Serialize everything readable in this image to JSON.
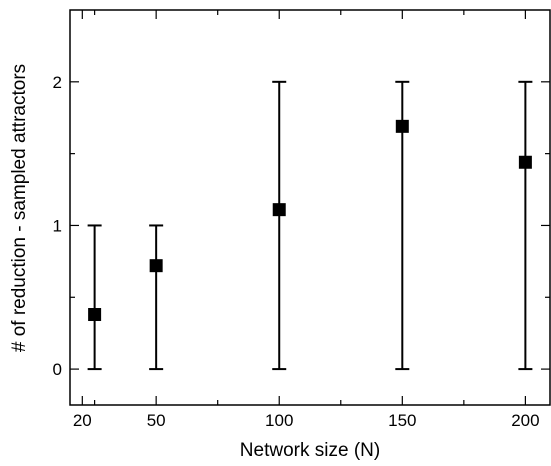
{
  "chart_data": {
    "type": "scatter",
    "title": "",
    "xlabel": "Network size (N)",
    "ylabel": "# of reduction - sampled attractors",
    "xlim": [
      15,
      210
    ],
    "ylim": [
      -0.25,
      2.5
    ],
    "xticks_major": [
      20,
      50,
      100,
      150,
      200
    ],
    "xticks_minor": [
      25,
      75,
      125,
      175
    ],
    "yticks_major": [
      0,
      1,
      2
    ],
    "yticks_minor": [
      0.5,
      1.5
    ],
    "grid": false,
    "legend": "none",
    "marker": "square",
    "color": "#000000",
    "points": [
      {
        "x": 25,
        "y": 0.38,
        "err_low": 0,
        "err_high": 1
      },
      {
        "x": 50,
        "y": 0.72,
        "err_low": 0,
        "err_high": 1
      },
      {
        "x": 100,
        "y": 1.11,
        "err_low": 0,
        "err_high": 2
      },
      {
        "x": 150,
        "y": 1.69,
        "err_low": 0,
        "err_high": 2
      },
      {
        "x": 200,
        "y": 1.44,
        "err_low": 0,
        "err_high": 2
      }
    ]
  }
}
